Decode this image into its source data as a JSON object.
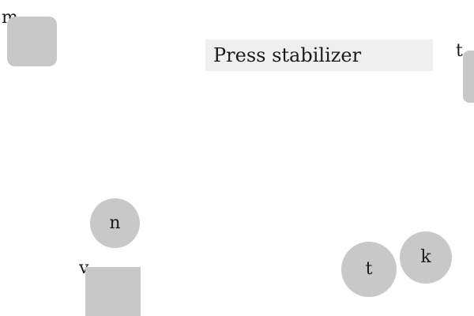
{
  "instruction": {
    "text": "Press stabilizer"
  },
  "controls": {
    "square_m": {
      "label": "m",
      "shape": "rounded-square"
    },
    "edge_t": {
      "label": "t",
      "shape": "rounded-rect"
    },
    "circle_n": {
      "label": "n",
      "shape": "circle"
    },
    "square_v": {
      "label": "v",
      "shape": "square"
    },
    "circle_t": {
      "label": "t",
      "shape": "circle"
    },
    "circle_k": {
      "label": "k",
      "shape": "circle"
    }
  },
  "colors": {
    "background": "#ffffff",
    "control_fill": "#c8c8c8",
    "instruction_fill": "#efefef",
    "text": "#1a1a1a"
  }
}
